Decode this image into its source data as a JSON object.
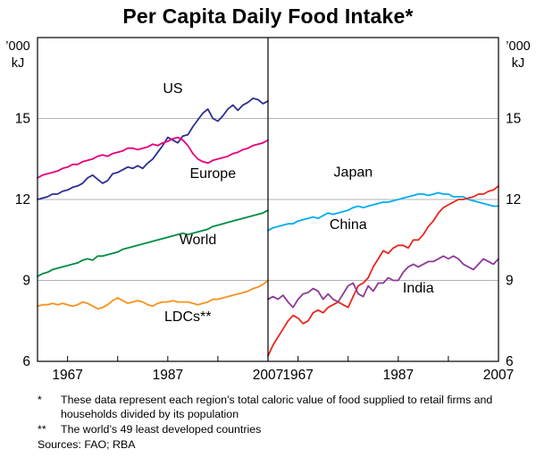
{
  "chart_data": {
    "type": "line",
    "title": "Per Capita Daily Food Intake*",
    "axis_unit": "’000 kJ",
    "axis_unit_lines": [
      "’000",
      "kJ"
    ],
    "ylim": [
      6,
      18
    ],
    "yticks": [
      6,
      9,
      12,
      15
    ],
    "x_range": [
      1961,
      2007
    ],
    "xticks": [
      1967,
      1987,
      2007
    ],
    "xtick_marks": [
      1967,
      1977,
      1987,
      1997,
      2007
    ],
    "grid": true,
    "legend_position": "inline-labels",
    "style": {
      "grid_color": "#b3b3b3",
      "axis_color": "#000000"
    },
    "panels": [
      {
        "name": "left",
        "series": [
          {
            "id": "us",
            "label": "US",
            "color": "#2d2f92",
            "start_year": 1961,
            "label_pos": [
              1988,
              15.95
            ],
            "values": [
              12.0,
              12.05,
              12.1,
              12.2,
              12.2,
              12.3,
              12.35,
              12.45,
              12.5,
              12.6,
              12.8,
              12.9,
              12.75,
              12.6,
              12.7,
              12.95,
              13.0,
              13.1,
              13.2,
              13.15,
              13.25,
              13.15,
              13.35,
              13.5,
              13.75,
              14.0,
              14.3,
              14.2,
              14.1,
              14.35,
              14.4,
              14.7,
              14.95,
              15.2,
              15.35,
              15.0,
              14.9,
              15.1,
              15.35,
              15.5,
              15.3,
              15.5,
              15.6,
              15.75,
              15.7,
              15.55,
              15.65
            ]
          },
          {
            "id": "europe",
            "label": "Europe",
            "color": "#e5007d",
            "start_year": 1961,
            "label_pos": [
              1996,
              12.8
            ],
            "values": [
              12.8,
              12.9,
              12.95,
              13.0,
              13.05,
              13.15,
              13.2,
              13.3,
              13.3,
              13.4,
              13.45,
              13.5,
              13.6,
              13.65,
              13.6,
              13.7,
              13.75,
              13.8,
              13.9,
              13.9,
              13.85,
              13.9,
              13.95,
              14.05,
              14.0,
              14.1,
              14.15,
              14.25,
              14.3,
              14.2,
              14.0,
              13.7,
              13.5,
              13.4,
              13.35,
              13.45,
              13.5,
              13.55,
              13.6,
              13.7,
              13.75,
              13.85,
              13.9,
              14.0,
              14.05,
              14.1,
              14.2
            ]
          },
          {
            "id": "world",
            "label": "World",
            "color": "#008c44",
            "start_year": 1961,
            "label_pos": [
              1993,
              10.35
            ],
            "values": [
              9.15,
              9.25,
              9.3,
              9.4,
              9.45,
              9.5,
              9.55,
              9.6,
              9.65,
              9.75,
              9.8,
              9.75,
              9.9,
              9.9,
              9.95,
              10.0,
              10.05,
              10.15,
              10.2,
              10.25,
              10.3,
              10.35,
              10.4,
              10.45,
              10.5,
              10.55,
              10.6,
              10.65,
              10.7,
              10.75,
              10.7,
              10.75,
              10.8,
              10.85,
              10.9,
              11.0,
              11.05,
              11.1,
              11.15,
              11.2,
              11.25,
              11.3,
              11.35,
              11.4,
              11.45,
              11.5,
              11.6
            ]
          },
          {
            "id": "ldcs",
            "label": "LDCs**",
            "color": "#f6921e",
            "start_year": 1961,
            "label_pos": [
              1991,
              7.5
            ],
            "values": [
              8.05,
              8.1,
              8.1,
              8.15,
              8.1,
              8.15,
              8.1,
              8.05,
              8.1,
              8.2,
              8.15,
              8.05,
              7.95,
              8.0,
              8.1,
              8.25,
              8.35,
              8.25,
              8.15,
              8.2,
              8.25,
              8.2,
              8.1,
              8.05,
              8.15,
              8.2,
              8.2,
              8.25,
              8.2,
              8.2,
              8.2,
              8.15,
              8.1,
              8.15,
              8.2,
              8.3,
              8.3,
              8.35,
              8.4,
              8.45,
              8.5,
              8.55,
              8.6,
              8.7,
              8.75,
              8.85,
              9.0
            ]
          }
        ]
      },
      {
        "name": "right",
        "series": [
          {
            "id": "japan",
            "label": "Japan",
            "color": "#00adef",
            "start_year": 1961,
            "label_pos": [
              1978,
              12.85
            ],
            "values": [
              10.85,
              10.95,
              11.0,
              11.05,
              11.1,
              11.1,
              11.2,
              11.25,
              11.3,
              11.35,
              11.3,
              11.4,
              11.5,
              11.45,
              11.5,
              11.55,
              11.6,
              11.7,
              11.75,
              11.7,
              11.75,
              11.8,
              11.85,
              11.9,
              11.9,
              11.95,
              12.0,
              12.05,
              12.1,
              12.15,
              12.2,
              12.2,
              12.15,
              12.2,
              12.25,
              12.2,
              12.2,
              12.1,
              12.1,
              12.1,
              12.0,
              11.95,
              11.9,
              11.85,
              11.8,
              11.75,
              11.75
            ]
          },
          {
            "id": "china",
            "label": "China",
            "color": "#e8271d",
            "start_year": 1961,
            "label_pos": [
              1977,
              10.9
            ],
            "values": [
              6.2,
              6.6,
              6.9,
              7.2,
              7.5,
              7.7,
              7.6,
              7.4,
              7.5,
              7.8,
              7.9,
              7.8,
              8.0,
              8.1,
              8.2,
              8.1,
              8.0,
              8.4,
              8.8,
              8.9,
              9.1,
              9.5,
              9.8,
              10.1,
              10.0,
              10.2,
              10.3,
              10.3,
              10.2,
              10.5,
              10.5,
              10.7,
              11.0,
              11.2,
              11.5,
              11.7,
              11.8,
              11.9,
              12.0,
              12.0,
              12.05,
              12.1,
              12.2,
              12.2,
              12.3,
              12.35,
              12.5
            ]
          },
          {
            "id": "india",
            "label": "India",
            "color": "#8d3b96",
            "start_year": 1961,
            "label_pos": [
              1991,
              8.55
            ],
            "values": [
              8.3,
              8.4,
              8.3,
              8.45,
              8.2,
              8.0,
              8.3,
              8.5,
              8.55,
              8.7,
              8.6,
              8.3,
              8.5,
              8.3,
              8.2,
              8.5,
              8.8,
              8.9,
              8.5,
              8.4,
              8.8,
              8.6,
              8.9,
              8.9,
              9.1,
              9.0,
              9.0,
              9.3,
              9.5,
              9.6,
              9.5,
              9.6,
              9.7,
              9.7,
              9.8,
              9.9,
              9.8,
              9.9,
              9.8,
              9.6,
              9.5,
              9.4,
              9.6,
              9.8,
              9.7,
              9.6,
              9.8
            ]
          }
        ]
      }
    ]
  },
  "footnotes": [
    {
      "marker": "*",
      "text": "These data represent each region’s total caloric value of food supplied to retail firms and households divided by its population"
    },
    {
      "marker": "**",
      "text": "The world’s 49 least developed countries"
    }
  ],
  "sources": "Sources: FAO; RBA"
}
